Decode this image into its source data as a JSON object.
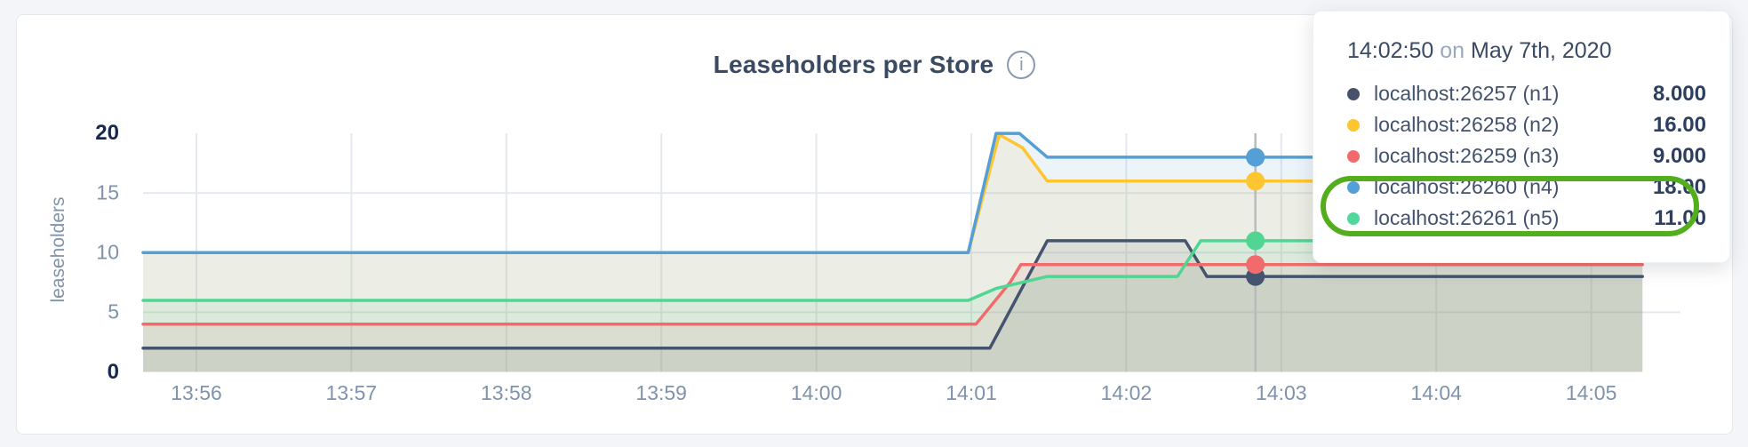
{
  "chart": {
    "title": "Leaseholders per Store",
    "info_icon": "i",
    "ylabel": "leaseholders"
  },
  "chart_data": {
    "type": "line",
    "title": "Leaseholders per Store",
    "ylabel": "leaseholders",
    "x_ticks": [
      "13:56",
      "13:57",
      "13:58",
      "13:59",
      "14:00",
      "14:01",
      "14:02",
      "14:03",
      "14:04",
      "14:05"
    ],
    "y_ticks": [
      0,
      5,
      10,
      15,
      20
    ],
    "y_major_ticks": [
      0,
      20
    ],
    "ylim": [
      0,
      20
    ],
    "x_range_minutes_from_1356": [
      -0.344,
      9.33
    ],
    "grid": {
      "vertical": true,
      "horizontal_at": [
        5,
        10,
        15
      ]
    },
    "legend_position": "hover-tooltip",
    "fill_opacity": 0.11,
    "series": [
      {
        "name": "localhost:26257 (n1)",
        "color": "#44546e",
        "points": [
          [
            -0.344,
            2
          ],
          [
            5.12,
            2
          ],
          [
            5.49,
            11
          ],
          [
            6.38,
            11
          ],
          [
            6.52,
            8
          ],
          [
            9.33,
            8
          ]
        ]
      },
      {
        "name": "localhost:26258 (n2)",
        "color": "#fdc530",
        "points": [
          [
            -0.344,
            10
          ],
          [
            4.98,
            10
          ],
          [
            5.18,
            19.9
          ],
          [
            5.33,
            18.8
          ],
          [
            5.49,
            16
          ],
          [
            9.33,
            16
          ]
        ]
      },
      {
        "name": "localhost:26259 (n3)",
        "color": "#f26b6c",
        "points": [
          [
            -0.344,
            4
          ],
          [
            5.03,
            4
          ],
          [
            5.25,
            7.5
          ],
          [
            5.32,
            9
          ],
          [
            9.33,
            9
          ]
        ]
      },
      {
        "name": "localhost:26260 (n4)",
        "color": "#539fd6",
        "points": [
          [
            -0.344,
            10
          ],
          [
            4.98,
            10
          ],
          [
            5.16,
            20
          ],
          [
            5.31,
            20
          ],
          [
            5.49,
            18
          ],
          [
            9.33,
            18
          ]
        ]
      },
      {
        "name": "localhost:26261 (n5)",
        "color": "#50d592",
        "points": [
          [
            -0.344,
            6
          ],
          [
            4.98,
            6
          ],
          [
            5.16,
            7
          ],
          [
            5.49,
            8
          ],
          [
            6.33,
            8
          ],
          [
            6.48,
            11
          ],
          [
            9.33,
            11
          ]
        ]
      }
    ],
    "hover": {
      "time": "14:02:50",
      "x_minutes_from_1356": 6.833,
      "values": [
        8,
        16,
        9,
        18,
        11
      ]
    }
  },
  "tooltip": {
    "time": "14:02:50",
    "on_word": "on",
    "date": "May 7th, 2020",
    "rows": [
      {
        "label": "localhost:26257 (n1)",
        "value": "8.000",
        "color": "#47526a"
      },
      {
        "label": "localhost:26258 (n2)",
        "value": "16.00",
        "color": "#fdc530"
      },
      {
        "label": "localhost:26259 (n3)",
        "value": "9.000",
        "color": "#f26b6c"
      },
      {
        "label": "localhost:26260 (n4)",
        "value": "18.00",
        "color": "#539fd6"
      },
      {
        "label": "localhost:26261 (n5)",
        "value": "11.00",
        "color": "#4fd79c"
      }
    ],
    "annotation_color": "#52ae1c"
  }
}
